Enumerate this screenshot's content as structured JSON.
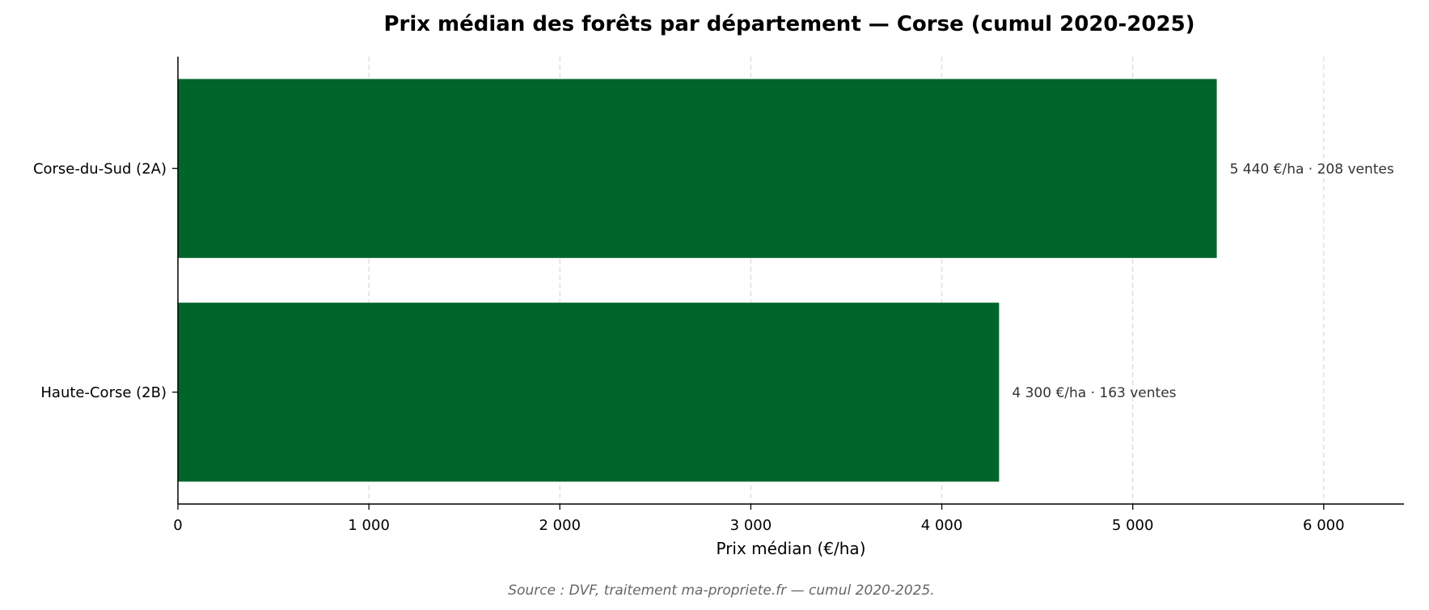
{
  "chart_data": {
    "type": "bar",
    "orientation": "horizontal",
    "title": "Prix médian des forêts par département — Corse (cumul 2020-2025)",
    "xlabel": "Prix médian (€/ha)",
    "ylabel": "",
    "categories": [
      "Corse-du-Sud (2A)",
      "Haute-Corse (2B)"
    ],
    "values": [
      5440,
      4300
    ],
    "data_labels": [
      "5 440 €/ha · 208 ventes",
      "4 300 €/ha · 163 ventes"
    ],
    "sales_counts": [
      208,
      163
    ],
    "xlim": [
      0,
      6420
    ],
    "xticks": [
      0,
      1000,
      2000,
      3000,
      4000,
      5000,
      6000
    ],
    "xtick_labels": [
      "0",
      "1 000",
      "2 000",
      "3 000",
      "4 000",
      "5 000",
      "6 000"
    ],
    "bar_color": "#00652a",
    "grid": "vertical dashed",
    "legend": "none"
  },
  "footer": {
    "source": "Source : DVF, traitement ma-propriete.fr — cumul 2020-2025."
  }
}
